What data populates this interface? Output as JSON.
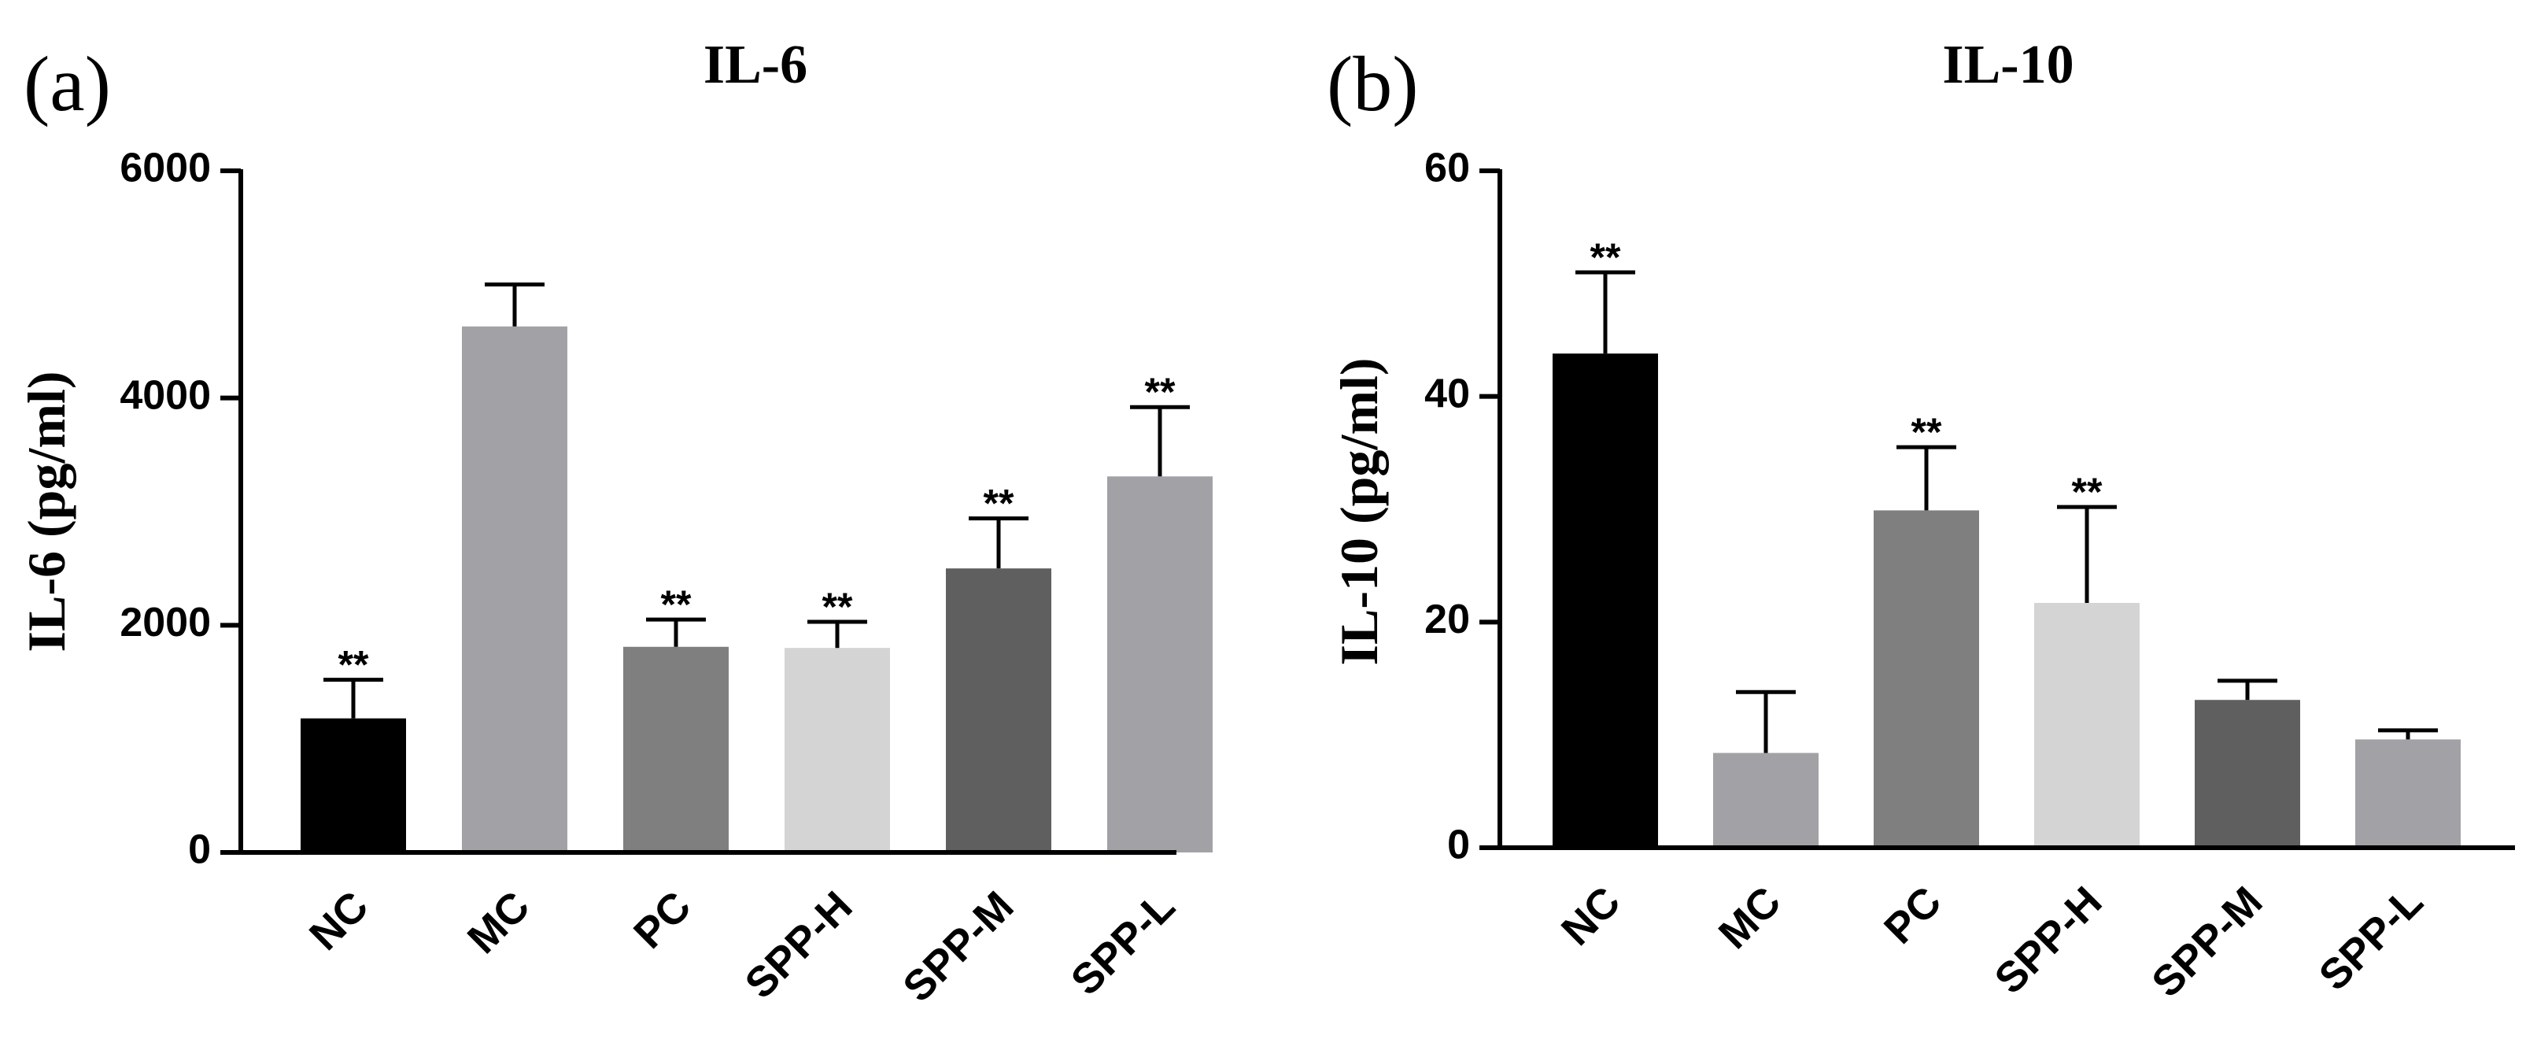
{
  "chart_data": [
    {
      "type": "bar",
      "panel_label": "(a)",
      "title": "IL-6",
      "ylabel": "IL-6 (pg/ml)",
      "xlabel": "",
      "ylim": [
        0,
        6000
      ],
      "yticks": [
        0,
        2000,
        4000,
        6000
      ],
      "ytick_labels": [
        "0",
        "2000",
        "4000",
        "6000"
      ],
      "categories": [
        "NC",
        "MC",
        "PC",
        "SPP-H",
        "SPP-M",
        "SPP-L"
      ],
      "values": [
        1180,
        4630,
        1810,
        1800,
        2500,
        3310
      ],
      "errors": [
        340,
        370,
        240,
        230,
        440,
        610
      ],
      "significance": [
        "**",
        "",
        "**",
        "**",
        "**",
        "**"
      ],
      "colors": [
        "#000000",
        "#a2a1a6",
        "#7f7f7f",
        "#d4d4d4",
        "#5f5f5f",
        "#a2a1a6"
      ]
    },
    {
      "type": "bar",
      "panel_label": "(b)",
      "title": "IL-10",
      "ylabel": "IL-10 (pg/ml)",
      "xlabel": "",
      "ylim": [
        0,
        60
      ],
      "yticks": [
        0,
        20,
        40,
        60
      ],
      "ytick_labels": [
        "0",
        "20",
        "40",
        "60"
      ],
      "categories": [
        "NC",
        "MC",
        "PC",
        "SPP-H",
        "SPP-M",
        "SPP-L"
      ],
      "values": [
        43.8,
        8.4,
        29.9,
        21.7,
        13.1,
        9.6
      ],
      "errors": [
        7.2,
        5.4,
        5.6,
        8.5,
        1.7,
        0.8
      ],
      "significance": [
        "**",
        "",
        "**",
        "**",
        "",
        ""
      ],
      "colors": [
        "#000000",
        "#a2a1a6",
        "#7f7f7f",
        "#d4d4d4",
        "#5f5f5f",
        "#a2a1a6"
      ]
    }
  ]
}
